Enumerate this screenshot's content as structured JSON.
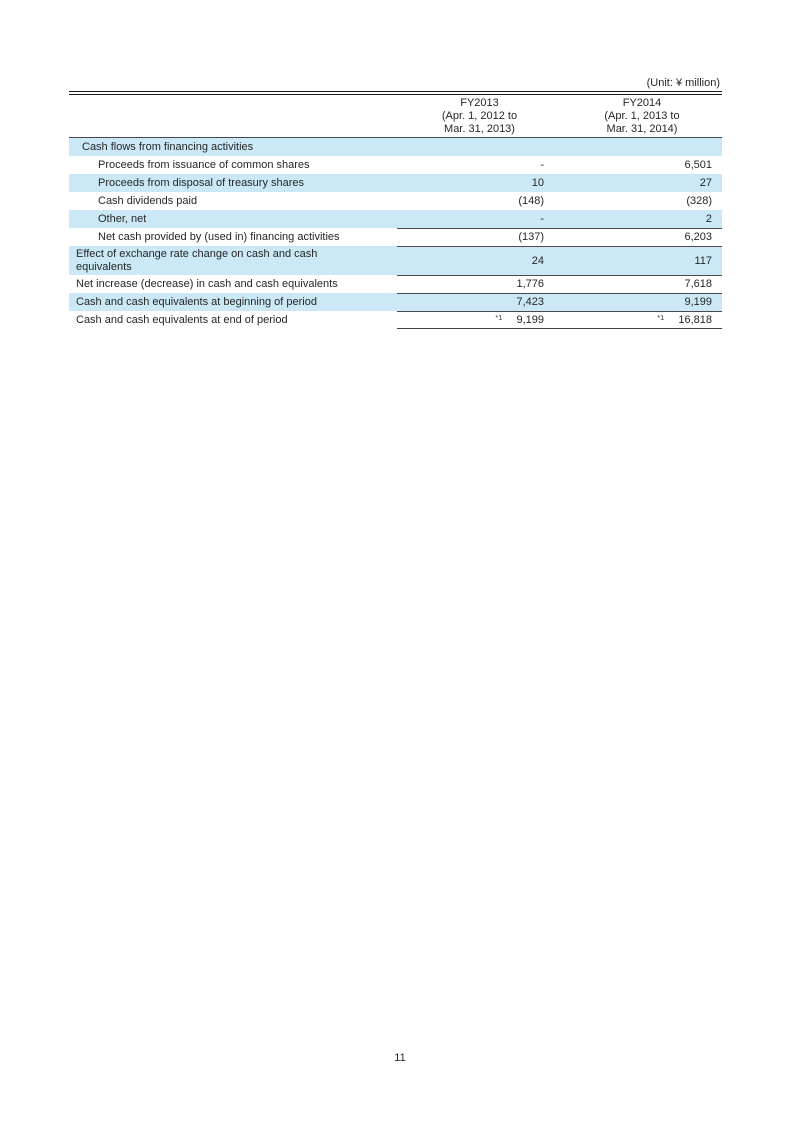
{
  "unit_label": "(Unit: ¥ million)",
  "page_number": "11",
  "colors": {
    "row_shade": "#cbe8f6",
    "rule": "#4a4a4a",
    "top_rule": "#1b1b1b"
  },
  "table": {
    "columns": [
      {
        "title": "FY2013",
        "subtitle1": "(Apr. 1, 2012 to",
        "subtitle2": "Mar. 31, 2013)"
      },
      {
        "title": "FY2014",
        "subtitle1": "(Apr. 1, 2013 to",
        "subtitle2": "Mar. 31, 2014)"
      }
    ],
    "rows": [
      {
        "label": "Cash flows from financing activities",
        "fy2013": "",
        "fy2014": "",
        "indent": 1,
        "shaded": true,
        "rule_top": false,
        "rule_bottom": false,
        "two_line": false,
        "note1": "",
        "note2": ""
      },
      {
        "label": "Proceeds from issuance of common shares",
        "fy2013": "-",
        "fy2014": "6,501",
        "indent": 2,
        "shaded": false,
        "rule_top": false,
        "rule_bottom": false,
        "two_line": false,
        "note1": "",
        "note2": ""
      },
      {
        "label": "Proceeds from disposal of treasury shares",
        "fy2013": "10",
        "fy2014": "27",
        "indent": 2,
        "shaded": true,
        "rule_top": false,
        "rule_bottom": false,
        "two_line": false,
        "note1": "",
        "note2": ""
      },
      {
        "label": "Cash dividends paid",
        "fy2013": "(148)",
        "fy2014": "(328)",
        "indent": 2,
        "shaded": false,
        "rule_top": false,
        "rule_bottom": false,
        "two_line": false,
        "note1": "",
        "note2": ""
      },
      {
        "label": "Other, net",
        "fy2013": "-",
        "fy2014": "2",
        "indent": 2,
        "shaded": true,
        "rule_top": false,
        "rule_bottom": false,
        "two_line": false,
        "note1": "",
        "note2": ""
      },
      {
        "label": "Net cash provided by (used in) financing activities",
        "fy2013": "(137)",
        "fy2014": "6,203",
        "indent": 2,
        "shaded": false,
        "rule_top": true,
        "rule_bottom": false,
        "two_line": false,
        "note1": "",
        "note2": ""
      },
      {
        "label": "Effect of exchange rate change on cash and cash equivalents",
        "fy2013": "24",
        "fy2014": "117",
        "indent": 0,
        "shaded": true,
        "rule_top": true,
        "rule_bottom": false,
        "two_line": true,
        "note1": "",
        "note2": ""
      },
      {
        "label": "Net increase (decrease) in cash and cash equivalents",
        "fy2013": "1,776",
        "fy2014": "7,618",
        "indent": 0,
        "shaded": false,
        "rule_top": true,
        "rule_bottom": false,
        "two_line": false,
        "note1": "",
        "note2": ""
      },
      {
        "label": "Cash and cash equivalents at beginning of period",
        "fy2013": "7,423",
        "fy2014": "9,199",
        "indent": 0,
        "shaded": true,
        "rule_top": true,
        "rule_bottom": false,
        "two_line": false,
        "note1": "",
        "note2": ""
      },
      {
        "label": "Cash and cash equivalents at end of period",
        "fy2013": "9,199",
        "fy2014": "16,818",
        "indent": 0,
        "shaded": false,
        "rule_top": true,
        "rule_bottom": true,
        "two_line": false,
        "note1": "*1",
        "note2": "*1"
      }
    ]
  }
}
